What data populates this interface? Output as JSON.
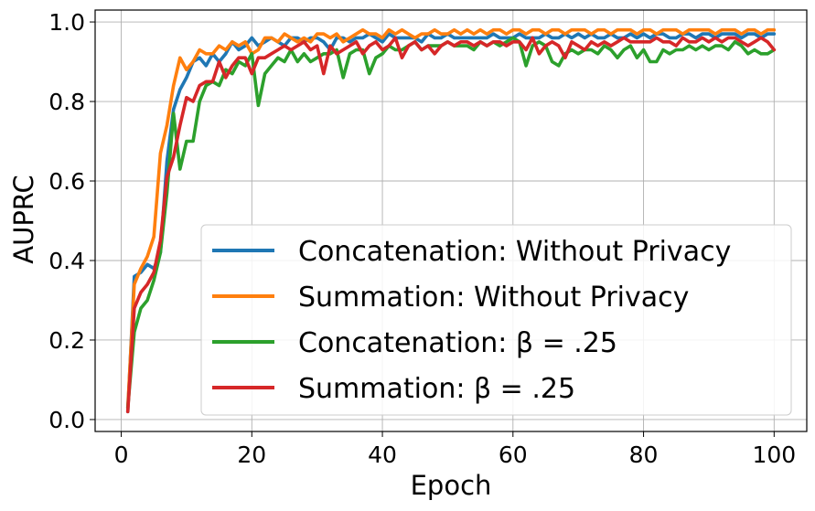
{
  "chart_data": {
    "type": "line",
    "title": "",
    "xlabel": "Epoch",
    "ylabel": "AUPRC",
    "xlim": [
      -4,
      105
    ],
    "ylim": [
      -0.03,
      1.03
    ],
    "xticks": [
      0,
      20,
      40,
      60,
      80,
      100
    ],
    "yticks": [
      0.0,
      0.2,
      0.4,
      0.6,
      0.8,
      1.0
    ],
    "grid": true,
    "legend_position": "lower-right",
    "series": [
      {
        "name": "Concatenation: Without Privacy",
        "color": "#1f77b4",
        "x": [
          1,
          2,
          3,
          4,
          5,
          6,
          7,
          8,
          9,
          10,
          11,
          12,
          13,
          14,
          15,
          16,
          17,
          18,
          19,
          20,
          21,
          22,
          23,
          24,
          25,
          26,
          27,
          28,
          29,
          30,
          31,
          32,
          33,
          34,
          35,
          36,
          37,
          38,
          39,
          40,
          41,
          42,
          43,
          44,
          45,
          46,
          47,
          48,
          49,
          50,
          51,
          52,
          53,
          54,
          55,
          56,
          57,
          58,
          59,
          60,
          61,
          62,
          63,
          64,
          65,
          66,
          67,
          68,
          69,
          70,
          71,
          72,
          73,
          74,
          75,
          76,
          77,
          78,
          79,
          80,
          81,
          82,
          83,
          84,
          85,
          86,
          87,
          88,
          89,
          90,
          91,
          92,
          93,
          94,
          95,
          96,
          97,
          98,
          99,
          100
        ],
        "values": [
          0.02,
          0.36,
          0.37,
          0.39,
          0.38,
          0.42,
          0.65,
          0.78,
          0.83,
          0.86,
          0.9,
          0.91,
          0.89,
          0.92,
          0.9,
          0.92,
          0.95,
          0.93,
          0.94,
          0.96,
          0.94,
          0.95,
          0.96,
          0.95,
          0.94,
          0.96,
          0.96,
          0.95,
          0.96,
          0.96,
          0.95,
          0.93,
          0.96,
          0.96,
          0.95,
          0.96,
          0.96,
          0.97,
          0.96,
          0.95,
          0.97,
          0.96,
          0.96,
          0.96,
          0.96,
          0.95,
          0.97,
          0.96,
          0.96,
          0.97,
          0.96,
          0.96,
          0.96,
          0.96,
          0.96,
          0.96,
          0.97,
          0.96,
          0.96,
          0.96,
          0.97,
          0.96,
          0.96,
          0.96,
          0.97,
          0.96,
          0.96,
          0.97,
          0.96,
          0.97,
          0.96,
          0.97,
          0.96,
          0.96,
          0.97,
          0.96,
          0.96,
          0.97,
          0.96,
          0.97,
          0.96,
          0.97,
          0.97,
          0.96,
          0.96,
          0.97,
          0.97,
          0.96,
          0.97,
          0.97,
          0.96,
          0.97,
          0.97,
          0.97,
          0.96,
          0.97,
          0.97,
          0.96,
          0.97,
          0.97
        ]
      },
      {
        "name": "Summation: Without Privacy",
        "color": "#ff7f0e",
        "x": [
          1,
          2,
          3,
          4,
          5,
          6,
          7,
          8,
          9,
          10,
          11,
          12,
          13,
          14,
          15,
          16,
          17,
          18,
          19,
          20,
          21,
          22,
          23,
          24,
          25,
          26,
          27,
          28,
          29,
          30,
          31,
          32,
          33,
          34,
          35,
          36,
          37,
          38,
          39,
          40,
          41,
          42,
          43,
          44,
          45,
          46,
          47,
          48,
          49,
          50,
          51,
          52,
          53,
          54,
          55,
          56,
          57,
          58,
          59,
          60,
          61,
          62,
          63,
          64,
          65,
          66,
          67,
          68,
          69,
          70,
          71,
          72,
          73,
          74,
          75,
          76,
          77,
          78,
          79,
          80,
          81,
          82,
          83,
          84,
          85,
          86,
          87,
          88,
          89,
          90,
          91,
          92,
          93,
          94,
          95,
          96,
          97,
          98,
          99,
          100
        ],
        "values": [
          0.03,
          0.34,
          0.38,
          0.41,
          0.46,
          0.67,
          0.74,
          0.84,
          0.91,
          0.88,
          0.9,
          0.93,
          0.92,
          0.92,
          0.94,
          0.93,
          0.95,
          0.94,
          0.95,
          0.92,
          0.93,
          0.96,
          0.96,
          0.95,
          0.97,
          0.96,
          0.95,
          0.96,
          0.95,
          0.97,
          0.97,
          0.96,
          0.97,
          0.95,
          0.96,
          0.97,
          0.98,
          0.97,
          0.97,
          0.96,
          0.98,
          0.97,
          0.98,
          0.97,
          0.96,
          0.97,
          0.97,
          0.98,
          0.97,
          0.97,
          0.98,
          0.97,
          0.98,
          0.97,
          0.98,
          0.97,
          0.98,
          0.98,
          0.97,
          0.98,
          0.98,
          0.97,
          0.98,
          0.98,
          0.97,
          0.98,
          0.98,
          0.97,
          0.98,
          0.98,
          0.98,
          0.97,
          0.98,
          0.98,
          0.97,
          0.98,
          0.98,
          0.98,
          0.97,
          0.98,
          0.98,
          0.97,
          0.98,
          0.98,
          0.98,
          0.97,
          0.98,
          0.98,
          0.98,
          0.98,
          0.97,
          0.98,
          0.98,
          0.98,
          0.97,
          0.98,
          0.98,
          0.97,
          0.98,
          0.98
        ]
      },
      {
        "name": "Concatenation: β = .25",
        "color": "#2ca02c",
        "x": [
          1,
          2,
          3,
          4,
          5,
          6,
          7,
          8,
          9,
          10,
          11,
          12,
          13,
          14,
          15,
          16,
          17,
          18,
          19,
          20,
          21,
          22,
          23,
          24,
          25,
          26,
          27,
          28,
          29,
          30,
          31,
          32,
          33,
          34,
          35,
          36,
          37,
          38,
          39,
          40,
          41,
          42,
          43,
          44,
          45,
          46,
          47,
          48,
          49,
          50,
          51,
          52,
          53,
          54,
          55,
          56,
          57,
          58,
          59,
          60,
          61,
          62,
          63,
          64,
          65,
          66,
          67,
          68,
          69,
          70,
          71,
          72,
          73,
          74,
          75,
          76,
          77,
          78,
          79,
          80,
          81,
          82,
          83,
          84,
          85,
          86,
          87,
          88,
          89,
          90,
          91,
          92,
          93,
          94,
          95,
          96,
          97,
          98,
          99,
          100
        ],
        "values": [
          0.03,
          0.22,
          0.28,
          0.3,
          0.35,
          0.42,
          0.57,
          0.77,
          0.63,
          0.7,
          0.7,
          0.8,
          0.84,
          0.85,
          0.84,
          0.88,
          0.87,
          0.9,
          0.89,
          0.92,
          0.79,
          0.87,
          0.89,
          0.91,
          0.9,
          0.93,
          0.9,
          0.92,
          0.9,
          0.91,
          0.92,
          0.92,
          0.93,
          0.86,
          0.92,
          0.93,
          0.93,
          0.87,
          0.91,
          0.92,
          0.94,
          0.93,
          0.93,
          0.94,
          0.95,
          0.93,
          0.94,
          0.94,
          0.94,
          0.95,
          0.94,
          0.94,
          0.94,
          0.93,
          0.95,
          0.94,
          0.95,
          0.94,
          0.95,
          0.96,
          0.95,
          0.89,
          0.94,
          0.95,
          0.94,
          0.9,
          0.89,
          0.92,
          0.93,
          0.92,
          0.93,
          0.93,
          0.92,
          0.94,
          0.93,
          0.91,
          0.93,
          0.94,
          0.91,
          0.93,
          0.9,
          0.9,
          0.93,
          0.92,
          0.93,
          0.93,
          0.94,
          0.93,
          0.94,
          0.93,
          0.94,
          0.94,
          0.93,
          0.95,
          0.94,
          0.92,
          0.93,
          0.92,
          0.92,
          0.93
        ]
      },
      {
        "name": "Summation: β = .25",
        "color": "#d62728",
        "x": [
          1,
          2,
          3,
          4,
          5,
          6,
          7,
          8,
          9,
          10,
          11,
          12,
          13,
          14,
          15,
          16,
          17,
          18,
          19,
          20,
          21,
          22,
          23,
          24,
          25,
          26,
          27,
          28,
          29,
          30,
          31,
          32,
          33,
          34,
          35,
          36,
          37,
          38,
          39,
          40,
          41,
          42,
          43,
          44,
          45,
          46,
          47,
          48,
          49,
          50,
          51,
          52,
          53,
          54,
          55,
          56,
          57,
          58,
          59,
          60,
          61,
          62,
          63,
          64,
          65,
          66,
          67,
          68,
          69,
          70,
          71,
          72,
          73,
          74,
          75,
          76,
          77,
          78,
          79,
          80,
          81,
          82,
          83,
          84,
          85,
          86,
          87,
          88,
          89,
          90,
          91,
          92,
          93,
          94,
          95,
          96,
          97,
          98,
          99,
          100
        ],
        "values": [
          0.02,
          0.28,
          0.32,
          0.34,
          0.37,
          0.45,
          0.61,
          0.66,
          0.74,
          0.81,
          0.8,
          0.84,
          0.85,
          0.85,
          0.9,
          0.86,
          0.89,
          0.91,
          0.91,
          0.87,
          0.91,
          0.91,
          0.92,
          0.93,
          0.94,
          0.93,
          0.94,
          0.95,
          0.93,
          0.94,
          0.87,
          0.94,
          0.92,
          0.93,
          0.94,
          0.95,
          0.92,
          0.94,
          0.95,
          0.93,
          0.94,
          0.96,
          0.91,
          0.94,
          0.95,
          0.93,
          0.94,
          0.92,
          0.94,
          0.95,
          0.94,
          0.95,
          0.95,
          0.94,
          0.95,
          0.94,
          0.95,
          0.95,
          0.94,
          0.95,
          0.95,
          0.93,
          0.96,
          0.92,
          0.94,
          0.95,
          0.94,
          0.91,
          0.95,
          0.94,
          0.93,
          0.95,
          0.94,
          0.95,
          0.94,
          0.95,
          0.96,
          0.95,
          0.95,
          0.95,
          0.95,
          0.96,
          0.95,
          0.95,
          0.94,
          0.96,
          0.95,
          0.95,
          0.96,
          0.95,
          0.96,
          0.95,
          0.96,
          0.96,
          0.95,
          0.94,
          0.95,
          0.96,
          0.95,
          0.93
        ]
      }
    ]
  }
}
